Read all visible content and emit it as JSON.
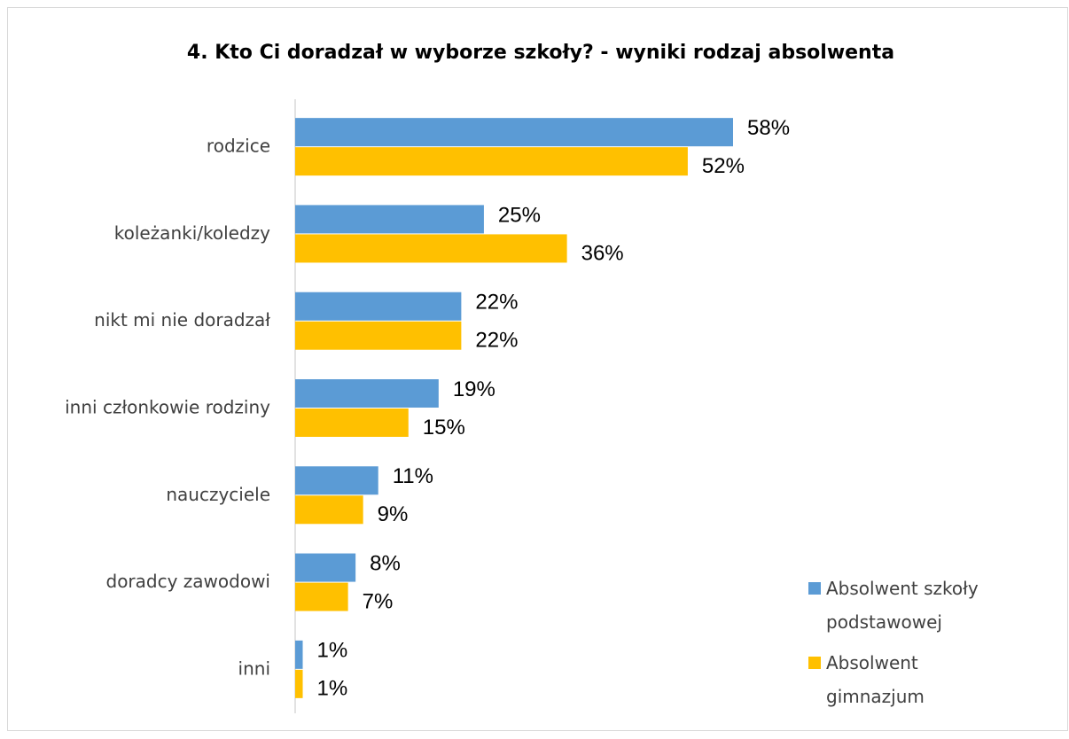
{
  "chart_data": {
    "type": "bar",
    "orientation": "horizontal",
    "title": "4. Kto Ci doradzał w wyborze szkoły? - wyniki rodzaj absolwenta",
    "categories": [
      "rodzice",
      "koleżanki/koledzy",
      "nikt mi nie doradzał",
      "inni członkowie rodziny",
      "nauczyciele",
      "doradcy zawodowi",
      "inni"
    ],
    "series": [
      {
        "name": "Absolwent szkoły podstawowej",
        "color": "#5b9bd5",
        "values": [
          58,
          25,
          22,
          19,
          11,
          8,
          1
        ],
        "value_labels": [
          "58%",
          "25%",
          "22%",
          "19%",
          "11%",
          "8%",
          "1%"
        ]
      },
      {
        "name": "Absolwent gimnazjum",
        "color": "#ffc000",
        "values": [
          52,
          36,
          22,
          15,
          9,
          7,
          1
        ],
        "value_labels": [
          "52%",
          "36%",
          "22%",
          "15%",
          "9%",
          "7%",
          "1%"
        ]
      }
    ],
    "legend": "right"
  }
}
